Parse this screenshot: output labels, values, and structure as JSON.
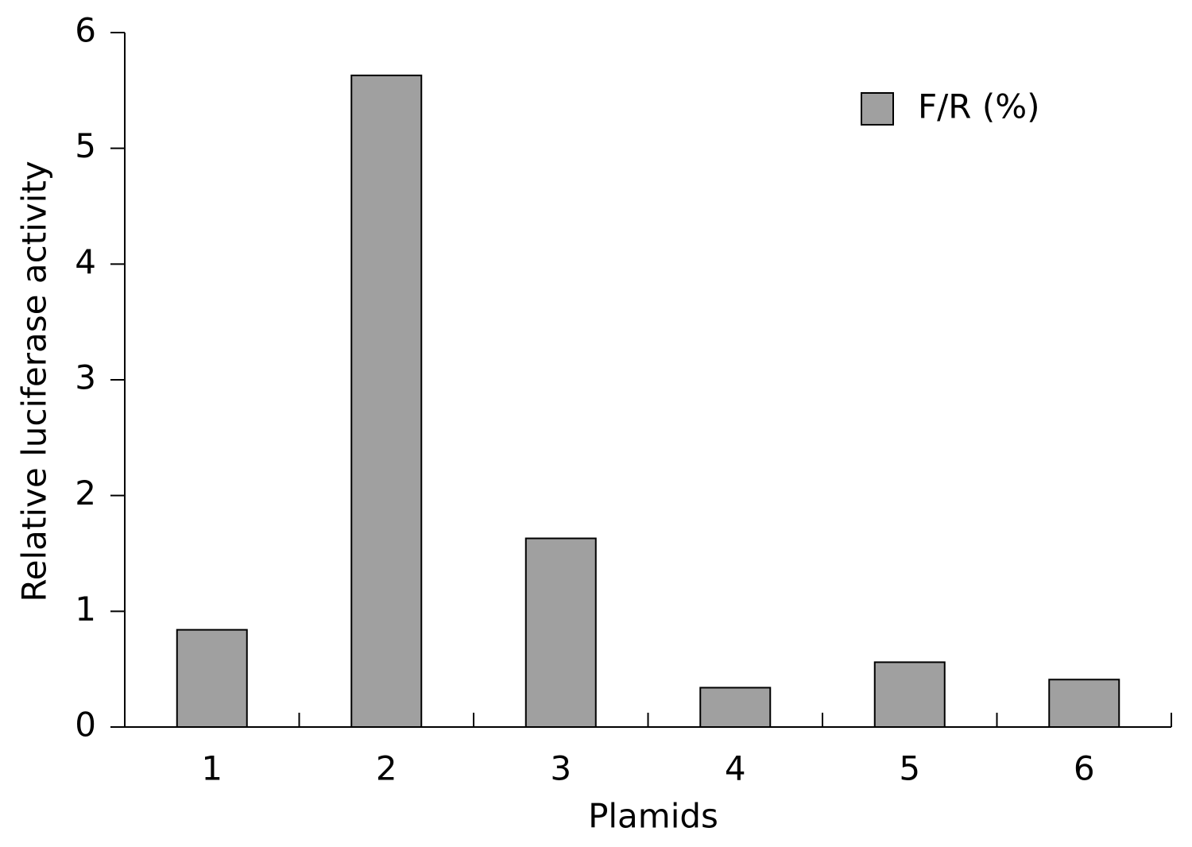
{
  "chart_data": {
    "type": "bar",
    "x_label": "Plamids",
    "y_label": "Relative luciferase activity",
    "categories": [
      "1",
      "2",
      "3",
      "4",
      "5",
      "6"
    ],
    "series": [
      {
        "name": "F/R (%)",
        "color": "#a0a0a0",
        "values": [
          0.84,
          5.63,
          1.63,
          0.34,
          0.56,
          0.41
        ]
      }
    ],
    "ylim": [
      0,
      6
    ],
    "yticks": [
      0,
      1,
      2,
      3,
      4,
      5,
      6
    ],
    "grid": false,
    "legend": "upper-right"
  }
}
